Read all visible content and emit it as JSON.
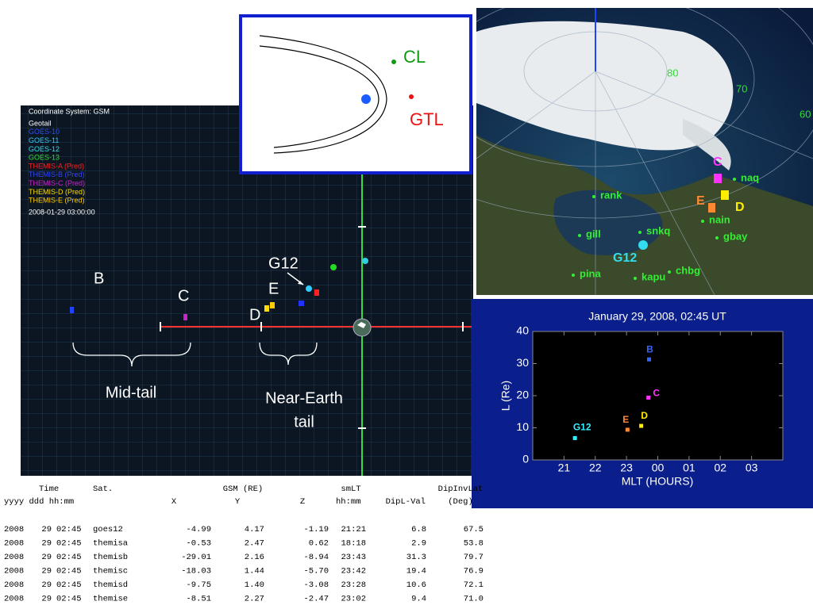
{
  "orbit_panel": {
    "coordinate_system": "Coordinate System: GSM",
    "legend": [
      {
        "name": "Geotail",
        "color": "#ffffff"
      },
      {
        "name": "GOES-10",
        "color": "#2a4dff"
      },
      {
        "name": "GOES-11",
        "color": "#33ccff"
      },
      {
        "name": "GOES-12",
        "color": "#33ddee"
      },
      {
        "name": "GOES-13",
        "color": "#33dd33"
      },
      {
        "name": "THEMIS-A (Pred)",
        "color": "#ff2020"
      },
      {
        "name": "THEMIS-B (Pred)",
        "color": "#3344ff"
      },
      {
        "name": "THEMIS-C (Pred)",
        "color": "#cc22cc"
      },
      {
        "name": "THEMIS-D (Pred)",
        "color": "#ffdd00"
      },
      {
        "name": "THEMIS-E (Pred)",
        "color": "#ffcc00"
      }
    ],
    "timestamp": "2008-01-29  03:00:00",
    "labels": [
      "B",
      "C",
      "G12",
      "E",
      "D"
    ],
    "region_mid": "Mid-tail",
    "region_near": [
      "Near-Earth",
      "tail"
    ]
  },
  "schematic": {
    "cl": "CL",
    "gtl": "GTL"
  },
  "map": {
    "latitudes": [
      "80",
      "70",
      "60"
    ],
    "stations": [
      "rank",
      "gill",
      "snkq",
      "pina",
      "kapu",
      "chbg",
      "naq",
      "nain",
      "gbay"
    ],
    "satellites": [
      {
        "name": "C",
        "color": "#ff33ff"
      },
      {
        "name": "E",
        "color": "#ff8833"
      },
      {
        "name": "D",
        "color": "#ffee00"
      },
      {
        "name": "G12",
        "color": "#33ddee"
      }
    ]
  },
  "chart_data": {
    "type": "scatter",
    "title": "January 29, 2008, 02:45 UT",
    "xlabel": "MLT (HOURS)",
    "ylabel": "L (Re)",
    "xlim": [
      20,
      28
    ],
    "ylim": [
      0,
      40
    ],
    "xticks": [
      21,
      22,
      23,
      {
        "value": 24,
        "label": "00"
      },
      {
        "value": 25,
        "label": "01"
      },
      {
        "value": 26,
        "label": "02"
      },
      {
        "value": 27,
        "label": "03"
      }
    ],
    "yticks": [
      0,
      10,
      20,
      30,
      40
    ],
    "series": [
      {
        "name": "G12",
        "color": "#33eeff",
        "x": [
          21.35
        ],
        "values": [
          6.8
        ]
      },
      {
        "name": "E",
        "color": "#ff8833",
        "x": [
          23.03
        ],
        "values": [
          9.4
        ]
      },
      {
        "name": "D",
        "color": "#ffee00",
        "x": [
          23.47
        ],
        "values": [
          10.6
        ]
      },
      {
        "name": "C",
        "color": "#ff33ff",
        "x": [
          23.7
        ],
        "values": [
          19.4
        ]
      },
      {
        "name": "B",
        "color": "#3366ff",
        "x": [
          23.72
        ],
        "values": [
          31.3
        ]
      }
    ]
  },
  "table": {
    "header1": [
      "Time",
      "Sat.",
      "GSM (RE)",
      "smLT",
      "DipInvLat"
    ],
    "header2": [
      "yyyy ddd hh:mm",
      "X",
      "Y",
      "Z",
      "hh:mm",
      "DipL-Val",
      "(Deg)"
    ],
    "rows": [
      [
        "2008",
        "29",
        "02:45",
        "goes12",
        "-4.99",
        "4.17",
        "-1.19",
        "21:21",
        "6.8",
        "67.5"
      ],
      [
        "2008",
        "29",
        "02:45",
        "themisa",
        "-0.53",
        "2.47",
        "0.62",
        "18:18",
        "2.9",
        "53.8"
      ],
      [
        "2008",
        "29",
        "02:45",
        "themisb",
        "-29.01",
        "2.16",
        "-8.94",
        "23:43",
        "31.3",
        "79.7"
      ],
      [
        "2008",
        "29",
        "02:45",
        "themisc",
        "-18.03",
        "1.44",
        "-5.70",
        "23:42",
        "19.4",
        "76.9"
      ],
      [
        "2008",
        "29",
        "02:45",
        "themisd",
        "-9.75",
        "1.40",
        "-3.08",
        "23:28",
        "10.6",
        "72.1"
      ],
      [
        "2008",
        "29",
        "02:45",
        "themise",
        "-8.51",
        "2.27",
        "-2.47",
        "23:02",
        "9.4",
        "71.0"
      ]
    ]
  }
}
